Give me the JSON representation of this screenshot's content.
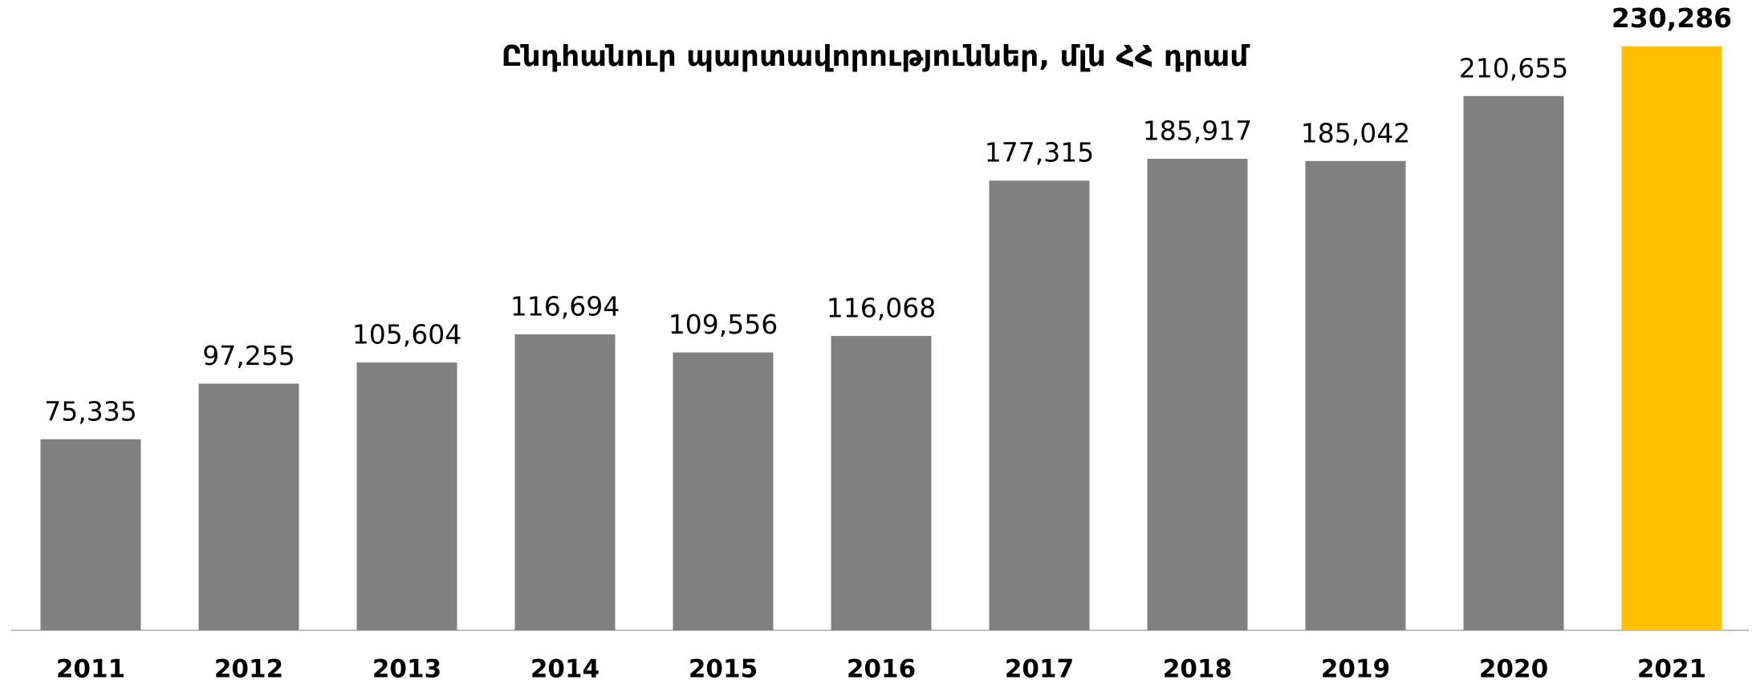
{
  "chart_data": {
    "type": "bar",
    "title": "Ընդհանուր պարտավորություններ, մլն ՀՀ դրամ",
    "categories": [
      "2011",
      "2012",
      "2013",
      "2014",
      "2015",
      "2016",
      "2017",
      "2018",
      "2019",
      "2020",
      "2021"
    ],
    "values": [
      75335,
      97255,
      105604,
      116694,
      109556,
      116068,
      177315,
      185917,
      185042,
      210655,
      230286
    ],
    "value_labels": [
      "75,335",
      "97,255",
      "105,604",
      "116,694",
      "109,556",
      "116,068",
      "177,315",
      "185,917",
      "185,042",
      "210,655",
      "230,286"
    ],
    "colors": [
      "#808080",
      "#808080",
      "#808080",
      "#808080",
      "#808080",
      "#808080",
      "#808080",
      "#808080",
      "#808080",
      "#808080",
      "#ffc000"
    ],
    "ylim": [
      0,
      240000
    ],
    "grid": false
  }
}
